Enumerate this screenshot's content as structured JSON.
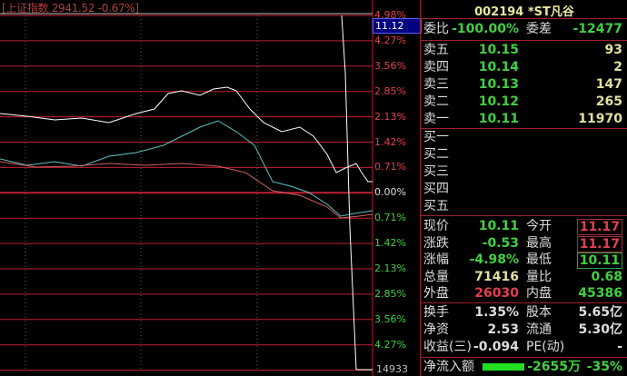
{
  "index_bar": {
    "text": "[上证指数 2941.52 -0.67%]"
  },
  "axis": {
    "up": [
      "4.98%",
      "4.27%",
      "3.56%",
      "2.85%",
      "2.13%",
      "1.42%",
      "0.71%"
    ],
    "zero": "0.00%",
    "down": [
      "0.71%",
      "1.42%",
      "2.13%",
      "2.85%",
      "3.56%",
      "4.27%"
    ],
    "current_price": "11.12",
    "volume": "14933"
  },
  "colors": {
    "up": "#e04050",
    "down": "#40d040",
    "grid": "#c02030",
    "price_line": "#ffffff"
  },
  "panel": {
    "title": "002194 *ST凡谷",
    "weibi": {
      "label": "委比",
      "value": "-100.00%",
      "label2": "委差",
      "value2": "-12477"
    },
    "sell": [
      {
        "label": "卖五",
        "price": "10.15",
        "vol": "93"
      },
      {
        "label": "卖四",
        "price": "10.14",
        "vol": "2"
      },
      {
        "label": "卖三",
        "price": "10.13",
        "vol": "147"
      },
      {
        "label": "卖二",
        "price": "10.12",
        "vol": "265"
      },
      {
        "label": "卖一",
        "price": "10.11",
        "vol": "11970"
      }
    ],
    "buy": [
      {
        "label": "买一"
      },
      {
        "label": "买二"
      },
      {
        "label": "买三"
      },
      {
        "label": "买四"
      },
      {
        "label": "买五"
      }
    ],
    "quote": [
      {
        "k": "现价",
        "v": "10.11",
        "k2": "今开",
        "v2": "11.17"
      },
      {
        "k": "涨跌",
        "v": "-0.53",
        "k2": "最高",
        "v2": "11.17"
      },
      {
        "k": "涨幅",
        "v": "-4.98%",
        "k2": "最低",
        "v2": "10.11"
      },
      {
        "k": "总量",
        "v": "71416",
        "k2": "量比",
        "v2": "0.68"
      },
      {
        "k": "外盘",
        "v": "26030",
        "k2": "内盘",
        "v2": "45386"
      }
    ],
    "fund": [
      {
        "k": "换手",
        "v": "1.35%",
        "k2": "股本",
        "v2": "5.65亿"
      },
      {
        "k": "净资",
        "v": "2.53",
        "k2": "流通",
        "v2": "5.30亿"
      },
      {
        "k": "收益(三)",
        "v": "-0.094",
        "k2": "PE(动)",
        "v2": "-"
      }
    ],
    "netflow": {
      "label": "净流入额",
      "value": "-2655万",
      "pct": "-35%"
    }
  }
}
